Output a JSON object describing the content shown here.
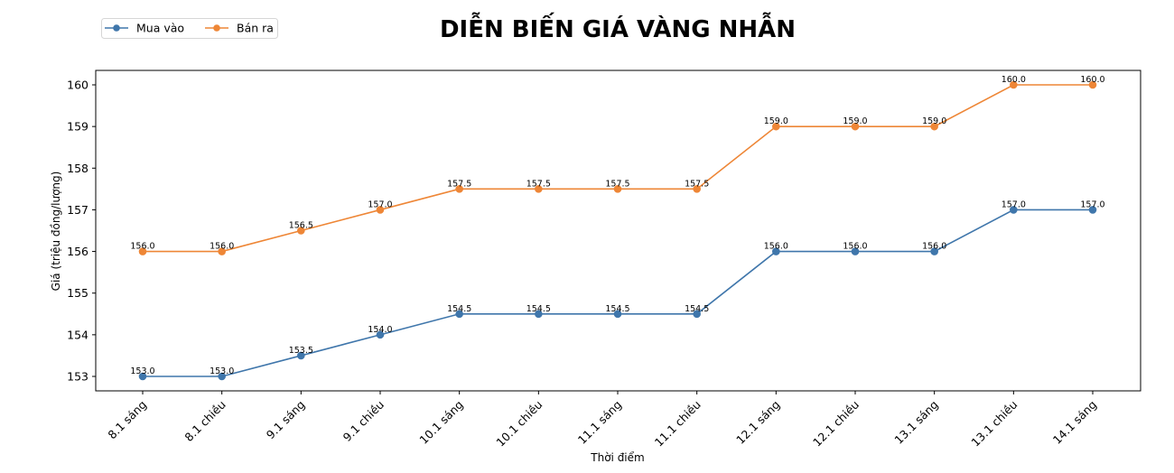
{
  "chart_data": {
    "type": "line",
    "title": "DIỄN BIẾN GIÁ VÀNG NHẪN",
    "xlabel": "Thời điểm",
    "ylabel": "Giá (triệu đồng/lượng)",
    "categories": [
      "8.1 sáng",
      "8.1 chiều",
      "9.1 sáng",
      "9.1 chiều",
      "10.1 sáng",
      "10.1 chiều",
      "11.1 sáng",
      "11.1 chiều",
      "12.1 sáng",
      "12.1 chiều",
      "13.1 sáng",
      "13.1 chiều",
      "14.1 sáng"
    ],
    "series": [
      {
        "name": "Mua vào",
        "color": "#3f76ab",
        "values": [
          153.0,
          153.0,
          153.5,
          154.0,
          154.5,
          154.5,
          154.5,
          154.5,
          156.0,
          156.0,
          156.0,
          157.0,
          157.0
        ]
      },
      {
        "name": "Bán ra",
        "color": "#ee8636",
        "values": [
          156.0,
          156.0,
          156.5,
          157.0,
          157.5,
          157.5,
          157.5,
          157.5,
          159.0,
          159.0,
          159.0,
          160.0,
          160.0
        ]
      }
    ],
    "yticks": [
      153,
      154,
      155,
      156,
      157,
      158,
      159,
      160
    ],
    "ylim": [
      152.65,
      160.35
    ],
    "grid": false,
    "legend_position": "upper left (outside, above plot)",
    "data_labels": true
  }
}
